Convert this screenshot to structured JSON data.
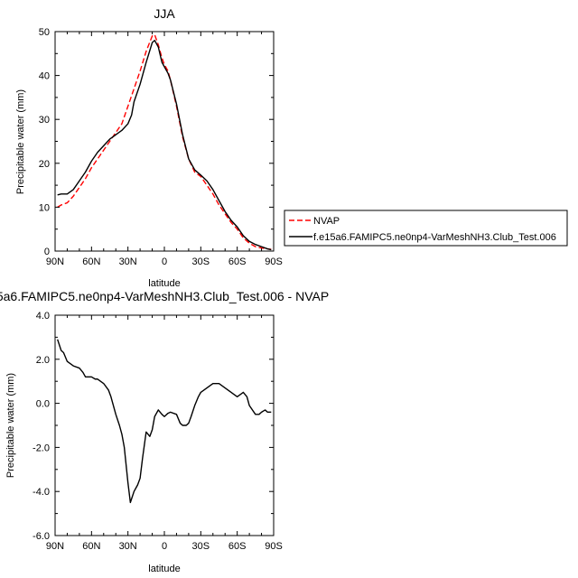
{
  "chart_data": [
    {
      "type": "line",
      "title": "JJA",
      "xlabel": "latitude",
      "ylabel": "Precipitable water (mm)",
      "xlim": [
        90,
        -90
      ],
      "ylim": [
        0,
        50
      ],
      "xticks": [
        90,
        60,
        30,
        0,
        -30,
        -60,
        -90
      ],
      "xticklabels": [
        "90N",
        "60N",
        "30N",
        "0",
        "30S",
        "60S",
        "90S"
      ],
      "yticks": [
        0,
        10,
        20,
        30,
        40,
        50
      ],
      "yticklabels": [
        "0",
        "10",
        "20",
        "30",
        "40",
        "50"
      ],
      "grid": false,
      "legend": "right",
      "series": [
        {
          "name": "NVAP",
          "color": "#ff0000",
          "dash": true,
          "x": [
            88,
            85,
            80,
            75,
            70,
            65,
            60,
            55,
            50,
            45,
            40,
            35,
            30,
            25,
            20,
            15,
            10,
            8,
            5,
            2,
            0,
            -3,
            -5,
            -10,
            -15,
            -20,
            -25,
            -30,
            -35,
            -40,
            -45,
            -50,
            -55,
            -60,
            -65,
            -70,
            -75,
            -80,
            -85,
            -88
          ],
          "y": [
            10,
            10.5,
            11,
            12.5,
            14.5,
            16.5,
            19,
            21,
            23,
            25,
            27,
            29,
            33,
            37,
            41,
            45.5,
            49,
            49.3,
            47,
            44,
            42.5,
            41,
            39,
            33,
            26,
            21,
            18,
            17,
            15,
            13,
            10.5,
            8.5,
            6.5,
            5,
            3,
            1.8,
            1,
            0.7,
            0.5,
            0.4
          ]
        },
        {
          "name": "f.e15a6.FAMIPC5.ne0np4-VarMeshNH3.Club_Test.006",
          "color": "#000000",
          "dash": false,
          "x": [
            88,
            85,
            80,
            75,
            70,
            65,
            60,
            55,
            50,
            45,
            40,
            35,
            30,
            27,
            25,
            20,
            15,
            10,
            8,
            5,
            2,
            0,
            -3,
            -5,
            -10,
            -15,
            -20,
            -25,
            -30,
            -35,
            -40,
            -45,
            -50,
            -55,
            -60,
            -65,
            -70,
            -75,
            -80,
            -85,
            -88
          ],
          "y": [
            12.8,
            13,
            13,
            14,
            16,
            18,
            20.5,
            22.5,
            24,
            25.5,
            26.5,
            27.5,
            29,
            31,
            34,
            38,
            43,
            47.5,
            48,
            46.5,
            43,
            42,
            40.5,
            39,
            33.5,
            26.5,
            21,
            18.5,
            17.3,
            16,
            14,
            11.5,
            9,
            7,
            5.5,
            3.5,
            2.2,
            1.5,
            1,
            0.5,
            0.3
          ]
        }
      ]
    },
    {
      "type": "line",
      "title": "5a6.FAMIPC5.ne0np4-VarMeshNH3.Club_Test.006 - NVAP",
      "xlabel": "latitude",
      "ylabel": "Precipitable water (mm)",
      "xlim": [
        90,
        -90
      ],
      "ylim": [
        -6,
        4
      ],
      "xticks": [
        90,
        60,
        30,
        0,
        -30,
        -60,
        -90
      ],
      "xticklabels": [
        "90N",
        "60N",
        "30N",
        "0",
        "30S",
        "60S",
        "90S"
      ],
      "yticks": [
        4,
        2,
        0,
        -2,
        -4,
        -6
      ],
      "yticklabels": [
        "4.0",
        "2.0",
        "0.0",
        "-2.0",
        "-4.0",
        "-6.0"
      ],
      "grid": false,
      "series": [
        {
          "color": "#000000",
          "dash": false,
          "x": [
            88,
            85,
            83,
            80,
            75,
            70,
            67,
            65,
            60,
            57,
            55,
            50,
            46,
            44,
            42,
            40,
            37,
            35,
            33,
            30,
            28,
            25,
            22,
            20,
            18,
            15,
            12,
            10,
            8,
            5,
            2,
            0,
            -3,
            -5,
            -10,
            -13,
            -15,
            -18,
            -20,
            -22,
            -25,
            -28,
            -30,
            -35,
            -40,
            -45,
            -50,
            -55,
            -60,
            -65,
            -68,
            -70,
            -75,
            -78,
            -80,
            -83,
            -85,
            -88
          ],
          "y": [
            2.9,
            2.4,
            2.3,
            1.9,
            1.7,
            1.6,
            1.4,
            1.2,
            1.2,
            1.1,
            1.1,
            0.9,
            0.6,
            0.3,
            -0.1,
            -0.5,
            -1.0,
            -1.4,
            -2.0,
            -3.6,
            -4.5,
            -4.0,
            -3.7,
            -3.4,
            -2.5,
            -1.3,
            -1.5,
            -1.2,
            -0.6,
            -0.3,
            -0.5,
            -0.6,
            -0.45,
            -0.4,
            -0.5,
            -0.9,
            -1.0,
            -1.0,
            -0.9,
            -0.6,
            -0.1,
            0.3,
            0.5,
            0.7,
            0.9,
            0.9,
            0.7,
            0.5,
            0.3,
            0.5,
            0.3,
            -0.1,
            -0.5,
            -0.5,
            -0.4,
            -0.3,
            -0.4,
            -0.4
          ]
        }
      ]
    }
  ]
}
